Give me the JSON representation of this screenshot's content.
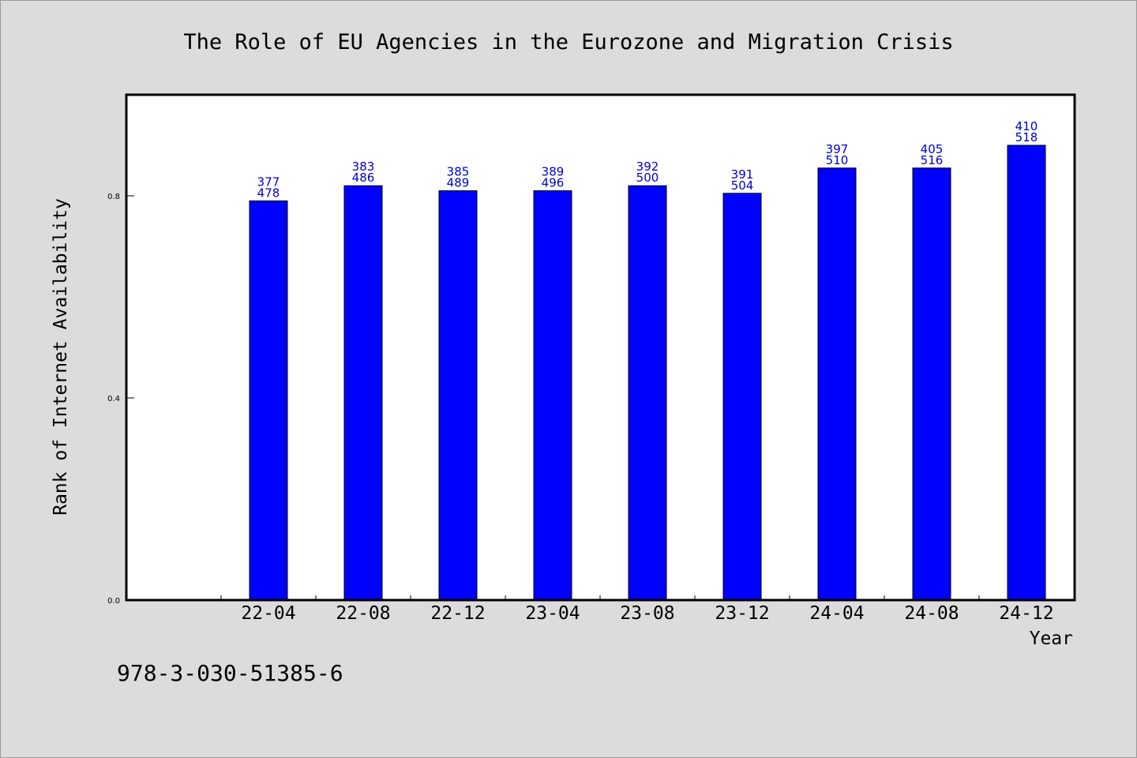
{
  "chart_data": {
    "type": "bar",
    "title": "The Role of EU Agencies in the Eurozone and Migration Crisis",
    "xlabel": "Year",
    "ylabel": "Rank of Internet Availability",
    "categories": [
      "22-04",
      "22-08",
      "22-12",
      "23-04",
      "23-08",
      "23-12",
      "24-04",
      "24-08",
      "24-12"
    ],
    "values": [
      0.79,
      0.82,
      0.81,
      0.81,
      0.82,
      0.805,
      0.855,
      0.855,
      0.9
    ],
    "label_top": [
      "377",
      "383",
      "385",
      "389",
      "392",
      "391",
      "397",
      "405",
      "410"
    ],
    "label_bottom": [
      "478",
      "486",
      "489",
      "496",
      "500",
      "504",
      "510",
      "516",
      "518"
    ],
    "yticks": [
      "0.0",
      "0.4",
      "0.8"
    ],
    "ylim": [
      0,
      1.0
    ],
    "grid": false,
    "legend": "none",
    "bar_color": "#0000ff",
    "label_color": "#0000cc"
  },
  "footnote": "978-3-030-51385-6"
}
